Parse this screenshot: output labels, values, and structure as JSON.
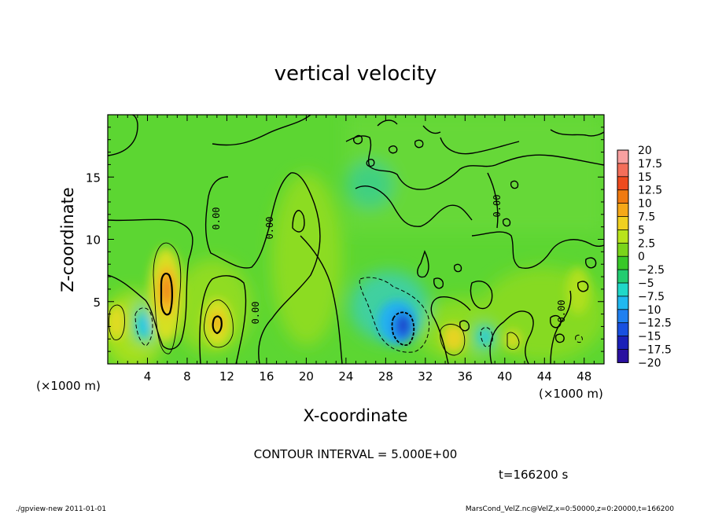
{
  "chart_data": {
    "type": "heatmap",
    "title": "vertical velocity",
    "xlabel": "X-coordinate",
    "ylabel": "Z-coordinate",
    "x_unit_left": "(×1000 m)",
    "x_unit_right": "(×1000 m)",
    "xlim": [
      0,
      50
    ],
    "ylim": [
      0,
      20
    ],
    "x_ticks": [
      4,
      8,
      12,
      16,
      20,
      24,
      28,
      32,
      36,
      40,
      44,
      48
    ],
    "y_ticks": [
      5,
      10,
      15
    ],
    "colorbar": {
      "levels": [
        "20",
        "17.5",
        "15",
        "12.5",
        "10",
        "7.5",
        "5",
        "2.5",
        "0",
        "−2.5",
        "−5",
        "−7.5",
        "−10",
        "−12.5",
        "−15",
        "−17.5",
        "−20"
      ],
      "colors": [
        "#f8a0a0",
        "#f36e5a",
        "#ee4a1e",
        "#f07a10",
        "#f5a818",
        "#f0d020",
        "#b8e41c",
        "#7ad41a",
        "#38c828",
        "#22cc70",
        "#20d8c8",
        "#20b8f0",
        "#2080f0",
        "#1850e0",
        "#1a20b8",
        "#2a10a0",
        "#7020c8"
      ]
    },
    "contour_labels": [
      "0.00",
      "0.00",
      "0.00",
      "0.00",
      "0.00"
    ],
    "contour_interval_text": "CONTOUR INTERVAL = 5.000E+00",
    "time_text": "t=166200 s",
    "features": [
      {
        "x": 1,
        "z": 3.2,
        "w": 6
      },
      {
        "x": 4,
        "z": 2.8,
        "w": -4
      },
      {
        "x": 6,
        "z": 6.0,
        "w": 12
      },
      {
        "x": 11,
        "z": 3.3,
        "w": 9
      },
      {
        "x": 19,
        "z": 7.5,
        "w": 5
      },
      {
        "x": 29.5,
        "z": 2.8,
        "w": -14
      },
      {
        "x": 34,
        "z": 2.3,
        "w": 7
      },
      {
        "x": 40.5,
        "z": 2.0,
        "w": 5
      },
      {
        "x": 47,
        "z": 5.5,
        "w": 5
      },
      {
        "x": 26,
        "z": 15.0,
        "w": -3
      }
    ]
  },
  "footer": {
    "left": "./gpview-new   2011-01-01",
    "right": "MarsCond_VelZ.nc@VelZ,x=0:50000,z=0:20000,t=166200"
  }
}
